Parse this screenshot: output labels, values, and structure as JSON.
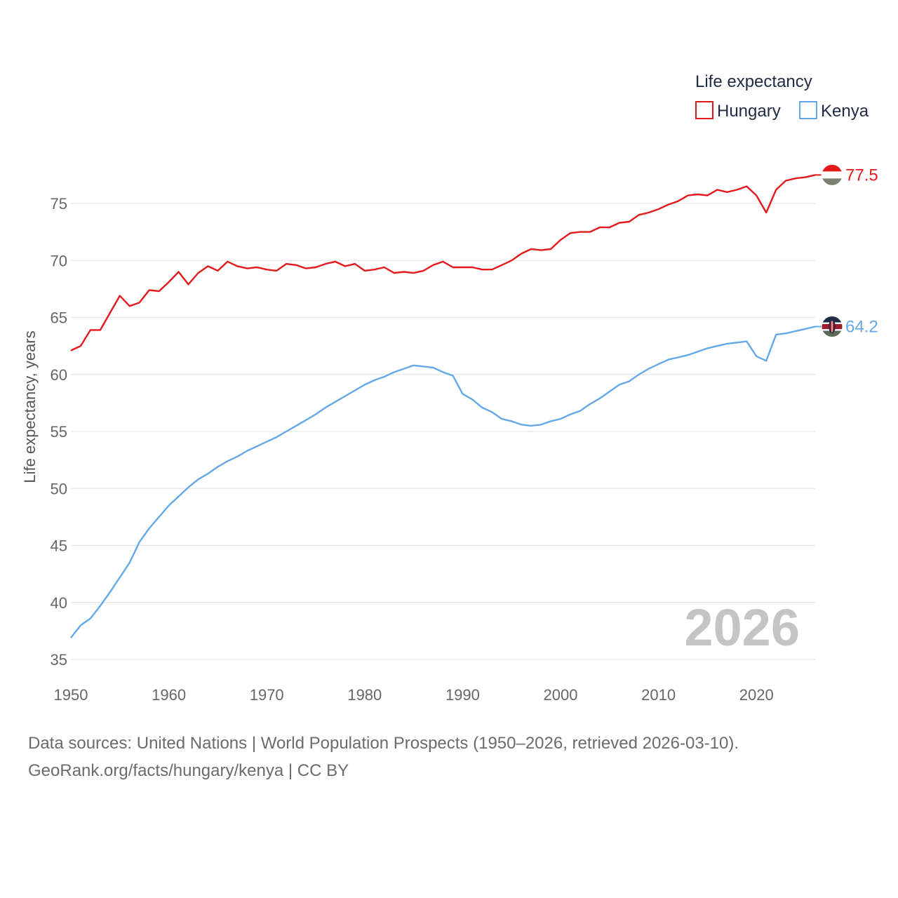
{
  "chart_data": {
    "type": "line",
    "title": "",
    "ylabel": "Life expectancy, years",
    "xlabel": "",
    "xlim": [
      1950,
      2026
    ],
    "ylim": [
      35,
      79
    ],
    "yticks": [
      35,
      40,
      45,
      50,
      55,
      60,
      65,
      70,
      75
    ],
    "xticks": [
      1950,
      1960,
      1970,
      1980,
      1990,
      2000,
      2010,
      2020
    ],
    "grid": "horizontal",
    "legend": {
      "title": "Life expectancy",
      "placement": "top-right",
      "entries": [
        "Hungary",
        "Kenya"
      ]
    },
    "year_label": "2026",
    "x": [
      1950,
      1951,
      1952,
      1953,
      1954,
      1955,
      1956,
      1957,
      1958,
      1959,
      1960,
      1961,
      1962,
      1963,
      1964,
      1965,
      1966,
      1967,
      1968,
      1969,
      1970,
      1971,
      1972,
      1973,
      1974,
      1975,
      1976,
      1977,
      1978,
      1979,
      1980,
      1981,
      1982,
      1983,
      1984,
      1985,
      1986,
      1987,
      1988,
      1989,
      1990,
      1991,
      1992,
      1993,
      1994,
      1995,
      1996,
      1997,
      1998,
      1999,
      2000,
      2001,
      2002,
      2003,
      2004,
      2005,
      2006,
      2007,
      2008,
      2009,
      2010,
      2011,
      2012,
      2013,
      2014,
      2015,
      2016,
      2017,
      2018,
      2019,
      2020,
      2021,
      2022,
      2023,
      2024,
      2025,
      2026
    ],
    "series": [
      {
        "name": "Hungary",
        "color": "#e3191c",
        "end_label": "77.5",
        "values": [
          62.1,
          62.5,
          63.9,
          63.9,
          65.4,
          66.9,
          66.0,
          66.3,
          67.4,
          67.3,
          68.1,
          69.0,
          67.9,
          68.9,
          69.5,
          69.1,
          69.9,
          69.5,
          69.3,
          69.4,
          69.2,
          69.1,
          69.7,
          69.6,
          69.3,
          69.4,
          69.7,
          69.9,
          69.5,
          69.7,
          69.1,
          69.2,
          69.4,
          68.9,
          69.0,
          68.9,
          69.1,
          69.6,
          69.9,
          69.4,
          69.4,
          69.4,
          69.2,
          69.2,
          69.6,
          70.0,
          70.6,
          71.0,
          70.9,
          71.0,
          71.8,
          72.4,
          72.5,
          72.5,
          72.9,
          72.9,
          73.3,
          73.4,
          74.0,
          74.2,
          74.5,
          74.9,
          75.2,
          75.7,
          75.8,
          75.7,
          76.2,
          76.0,
          76.2,
          76.5,
          75.7,
          74.2,
          76.2,
          77.0,
          77.2,
          77.3,
          77.5
        ]
      },
      {
        "name": "Kenya",
        "color": "#63a8e8",
        "end_label": "64.2",
        "values": [
          36.9,
          38.0,
          38.6,
          39.7,
          40.9,
          42.2,
          43.5,
          45.3,
          46.5,
          47.5,
          48.5,
          49.3,
          50.1,
          50.8,
          51.3,
          51.9,
          52.4,
          52.8,
          53.3,
          53.7,
          54.1,
          54.5,
          55.0,
          55.5,
          56.0,
          56.5,
          57.1,
          57.6,
          58.1,
          58.6,
          59.1,
          59.5,
          59.8,
          60.2,
          60.5,
          60.8,
          60.7,
          60.6,
          60.2,
          59.9,
          58.3,
          57.8,
          57.1,
          56.7,
          56.1,
          55.9,
          55.6,
          55.5,
          55.6,
          55.9,
          56.1,
          56.5,
          56.8,
          57.4,
          57.9,
          58.5,
          59.1,
          59.4,
          60.0,
          60.5,
          60.9,
          61.3,
          61.5,
          61.7,
          62.0,
          62.3,
          62.5,
          62.7,
          62.8,
          62.9,
          61.6,
          61.2,
          63.5,
          63.6,
          63.8,
          64.0,
          64.2
        ]
      }
    ]
  },
  "source": {
    "line1": "Data sources: United Nations | World Population Prospects (1950–2026, retrieved 2026-03-10).",
    "line2": "GeoRank.org/facts/hungary/kenya | CC BY"
  },
  "flags": {
    "hungary": [
      "#e3191c",
      "#ffffff",
      "#7a8275"
    ],
    "kenya": [
      "#1f2a44",
      "#ffffff",
      "#9b1c2c",
      "#5b6b58"
    ]
  }
}
